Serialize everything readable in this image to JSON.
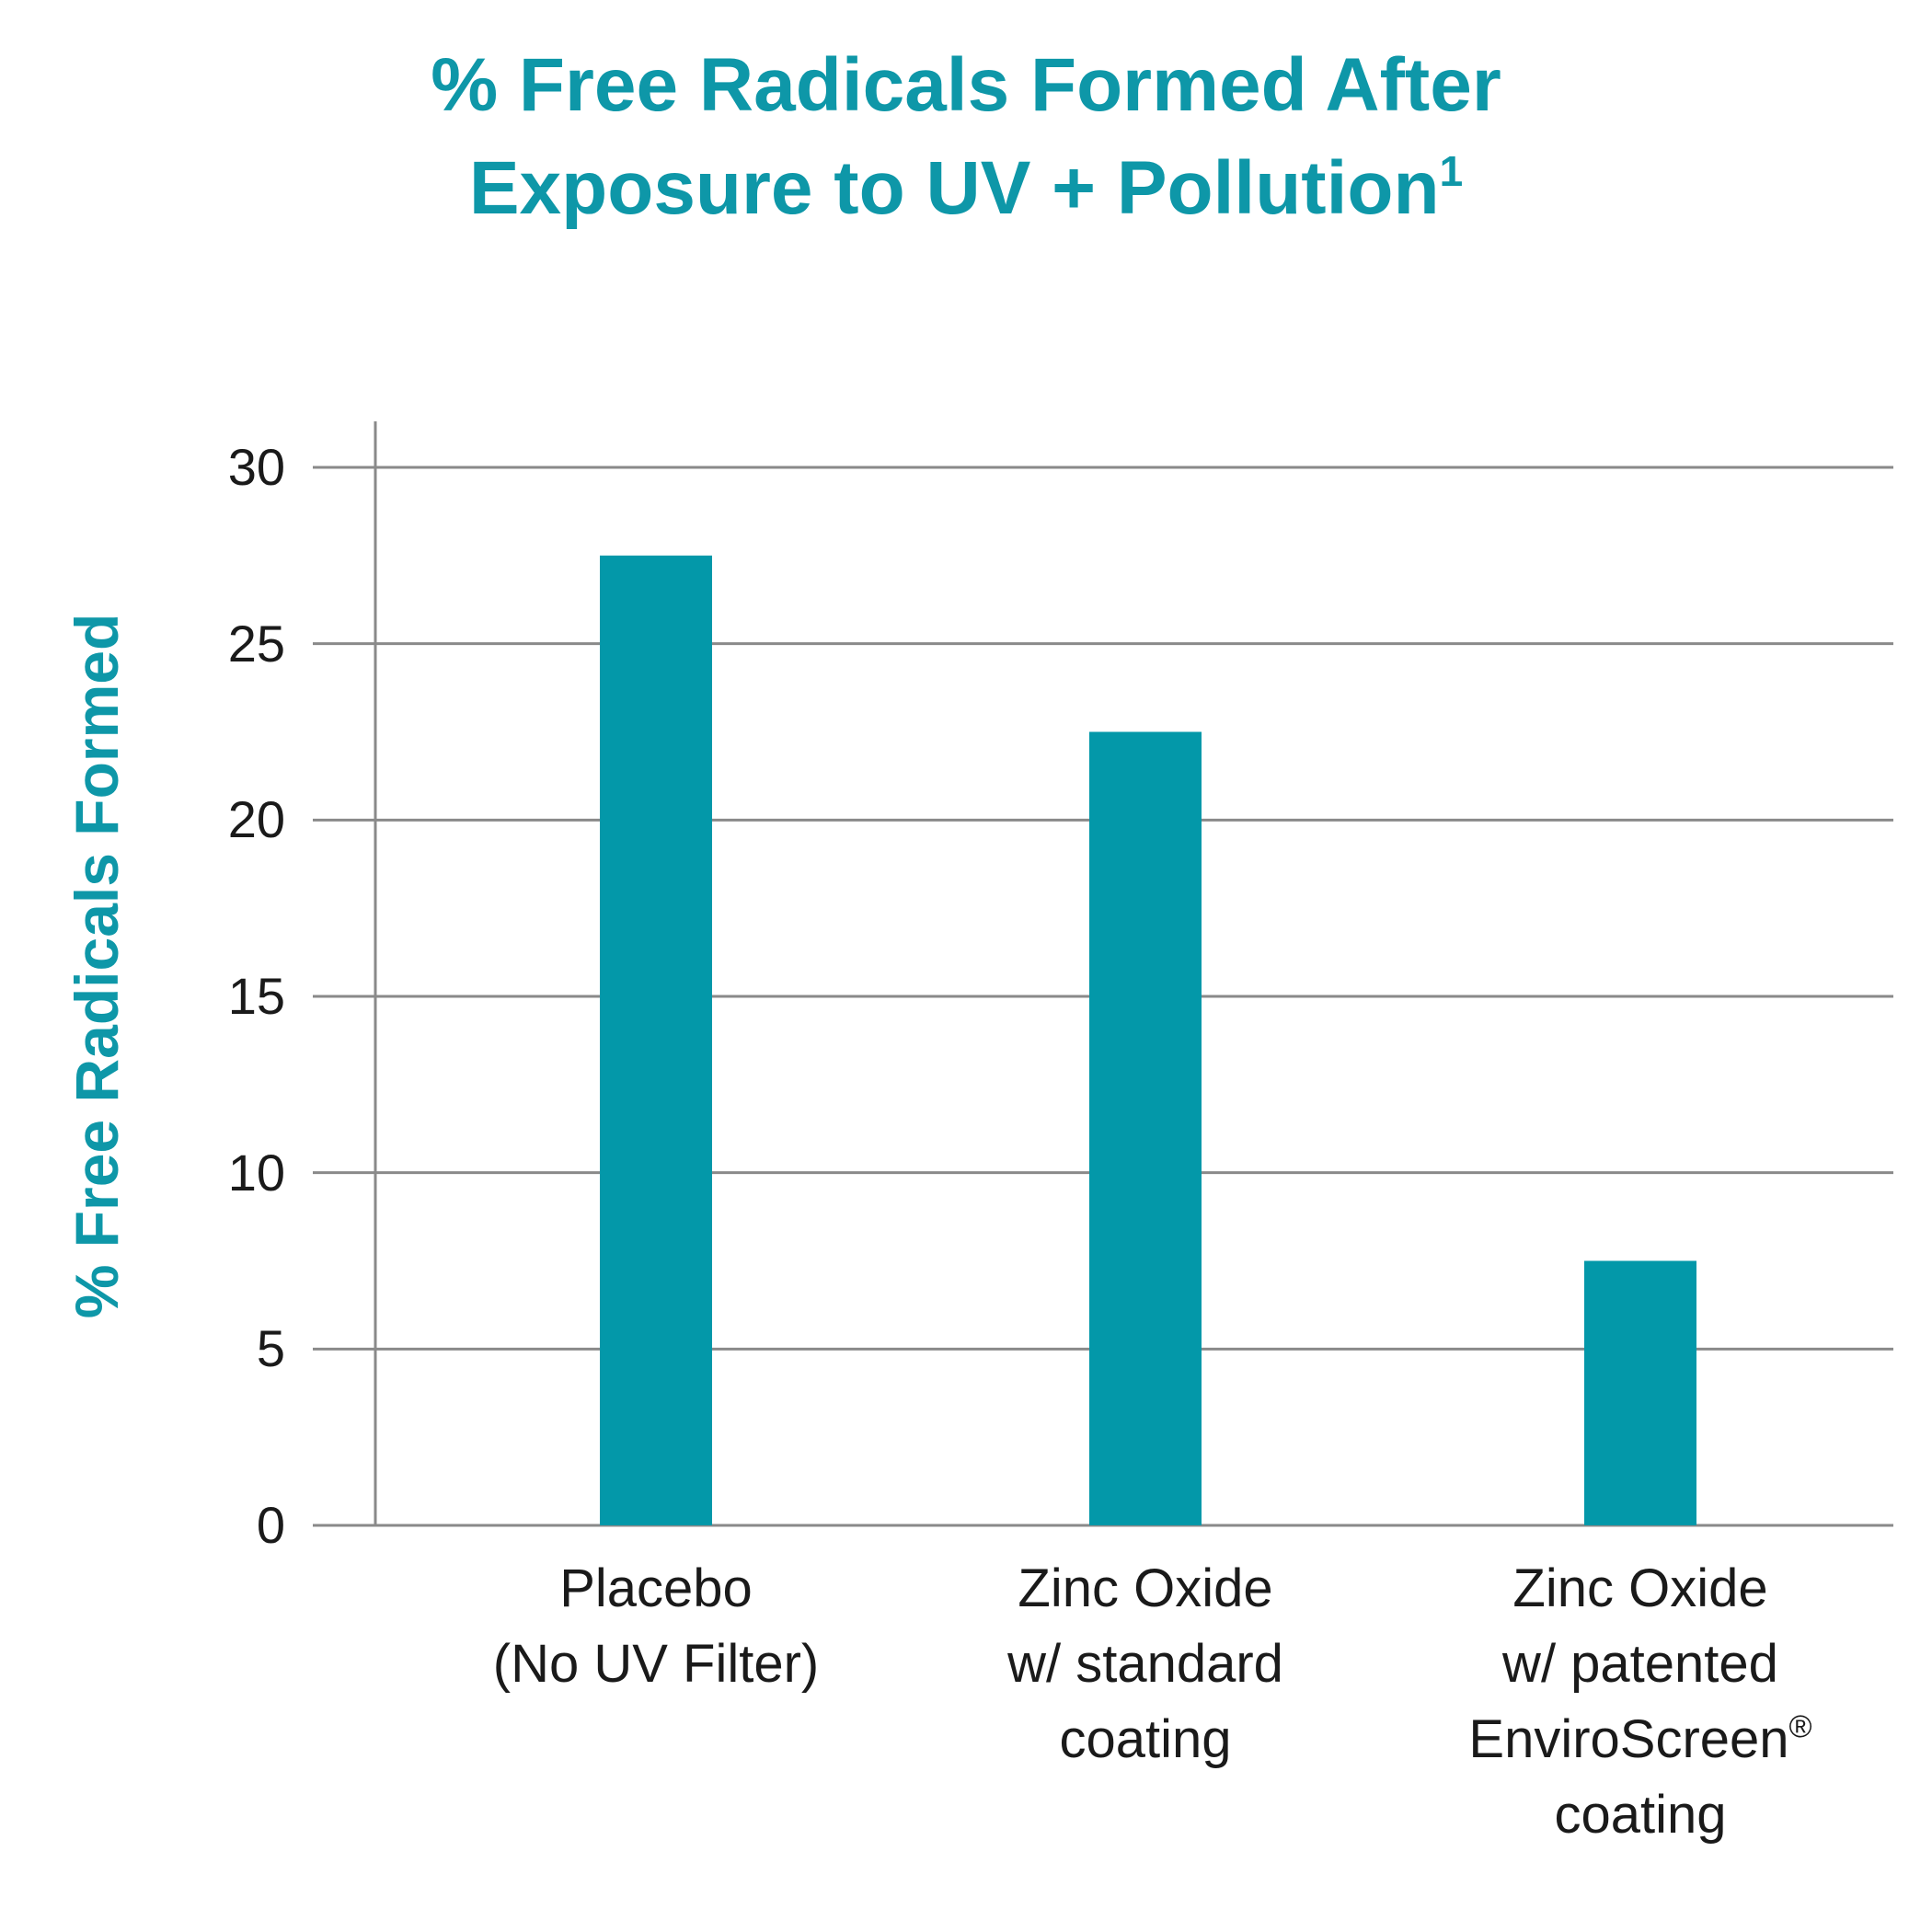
{
  "chart_data": {
    "type": "bar",
    "title_lines": [
      "% Free Radicals Formed After",
      "Exposure to UV + Pollution"
    ],
    "title_superscript": "1",
    "ylabel": "% Free Radicals Formed",
    "xlabel": "",
    "ylim": [
      0,
      30
    ],
    "yticks": [
      "0",
      "5",
      "10",
      "15",
      "20",
      "25",
      "30"
    ],
    "grid": true,
    "categories": [
      {
        "lines": [
          "Placebo",
          "(No UV Filter)"
        ],
        "sup": ""
      },
      {
        "lines": [
          "Zinc Oxide",
          "w/ standard",
          "coating"
        ],
        "sup": ""
      },
      {
        "lines": [
          "Zinc Oxide",
          "w/ patented",
          "EnviroScreen",
          "coating"
        ],
        "sup": "®"
      }
    ],
    "values": [
      27.5,
      22.5,
      7.5
    ],
    "colors": {
      "bar": "#0398a9",
      "title": "#0e97a8",
      "grid": "#8a8a8a"
    }
  }
}
